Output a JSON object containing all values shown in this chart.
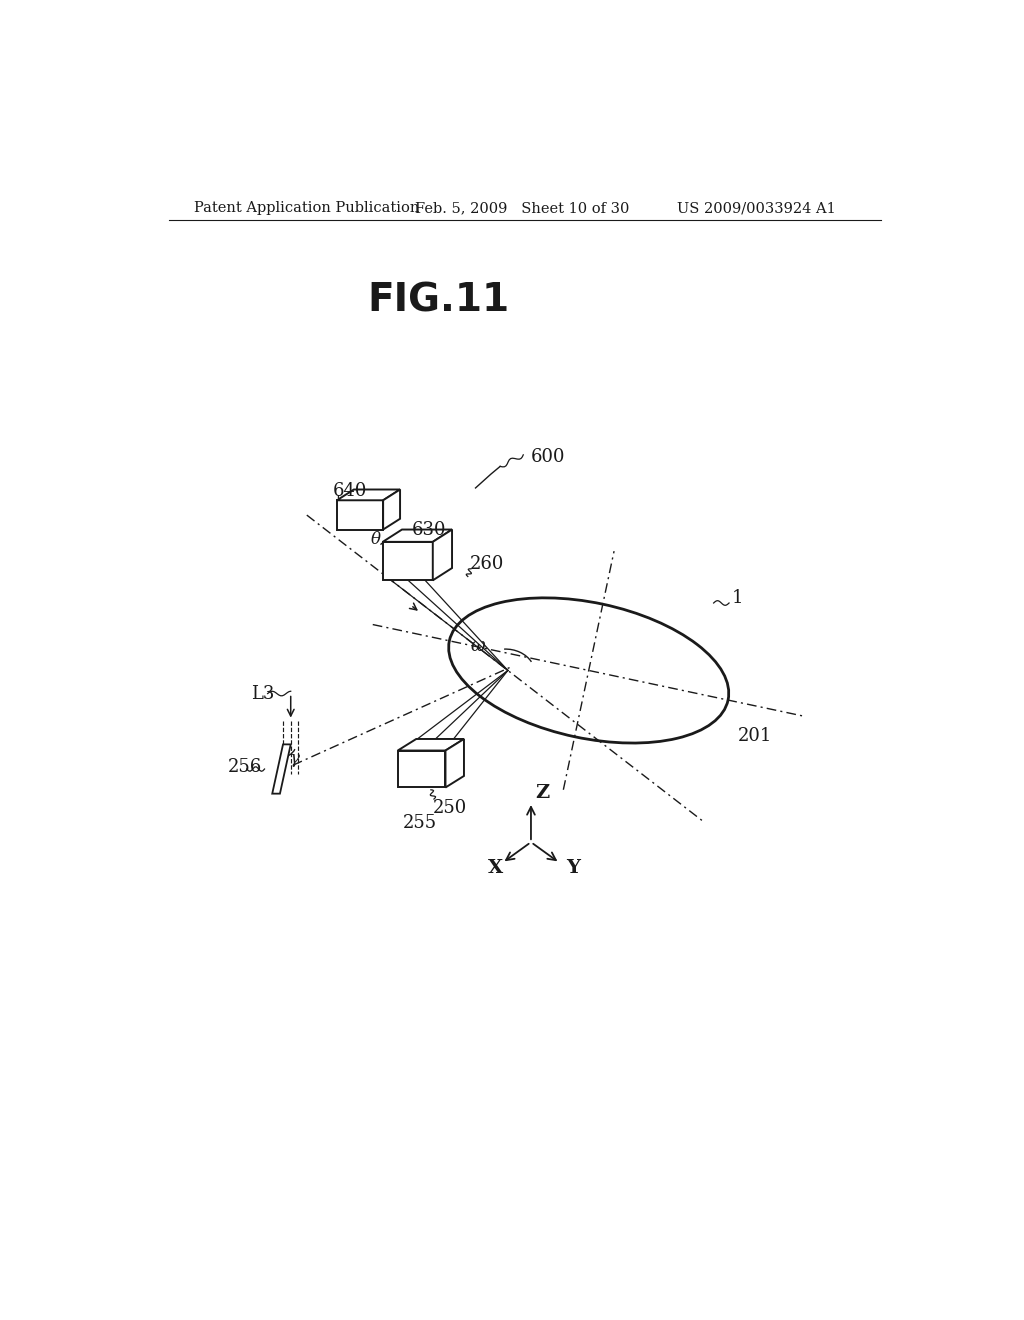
{
  "title": "FIG.11",
  "header_left": "Patent Application Publication",
  "header_mid": "Feb. 5, 2009   Sheet 10 of 30",
  "header_right": "US 2009/0033924 A1",
  "bg_color": "#ffffff",
  "line_color": "#1a1a1a",
  "label_600": "600",
  "label_640": "640",
  "label_630": "630",
  "label_260": "260",
  "label_1": "1",
  "label_L3": "L3",
  "label_256": "256",
  "label_gamma": "γ",
  "label_250": "250",
  "label_255": "255",
  "label_201": "201",
  "label_omega": "ω",
  "label_theta": "θ",
  "label_X": "X",
  "label_Y": "Y",
  "label_Z": "Z"
}
